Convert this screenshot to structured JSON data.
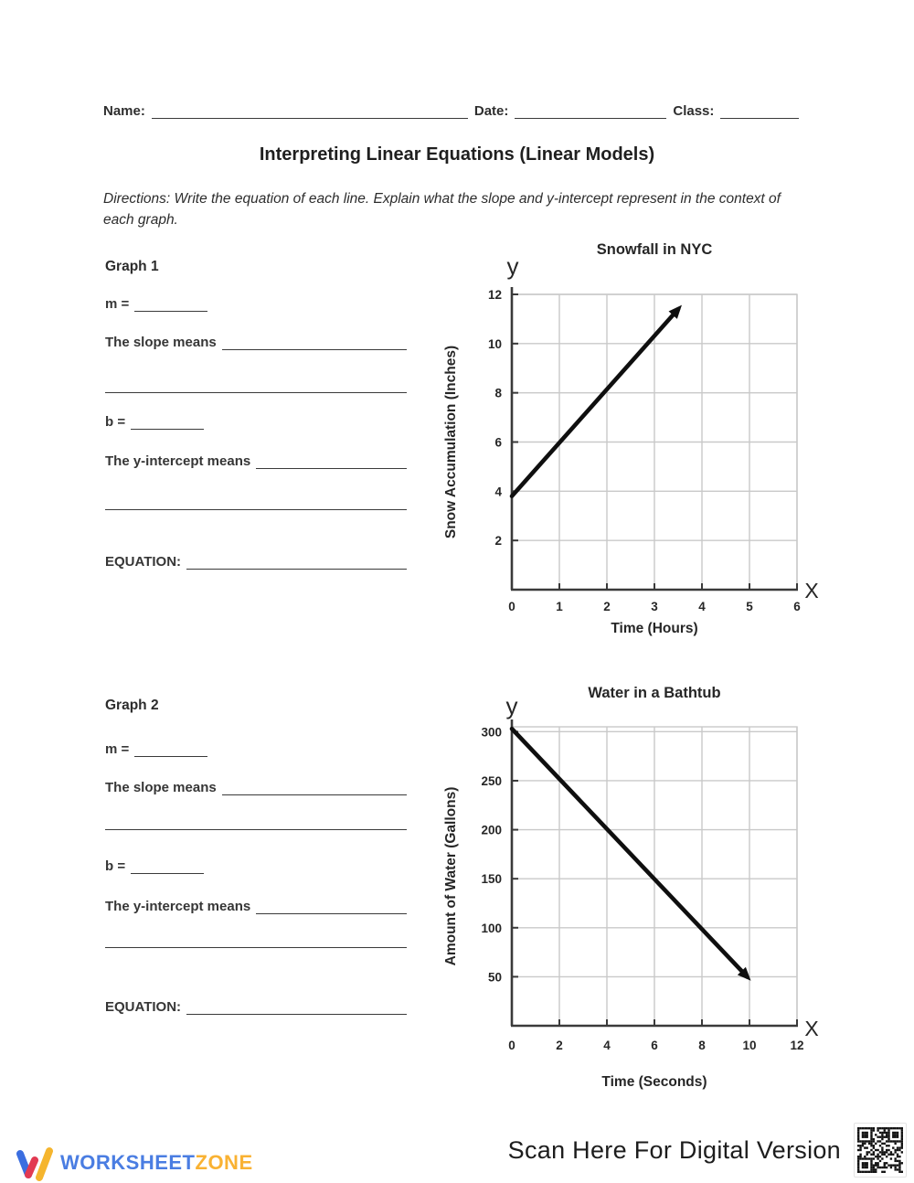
{
  "header": {
    "name_label": "Name:",
    "date_label": "Date:",
    "class_label": "Class:"
  },
  "title": "Interpreting Linear Equations (Linear Models)",
  "directions_line1": "Directions: Write the equation of each line.  Explain what the slope and y-intercept represent in the context of",
  "directions_line2": "each graph.",
  "sections": [
    {
      "heading": "Graph 1",
      "m_label": "m =",
      "slope_label": "The slope means",
      "b_label": "b =",
      "yint_label": "The y-intercept means",
      "equation_label": "EQUATION:"
    },
    {
      "heading": "Graph 2",
      "m_label": "m =",
      "slope_label": "The slope means",
      "b_label": "b =",
      "yint_label": "The y-intercept means",
      "equation_label": "EQUATION:"
    }
  ],
  "chart_data": [
    {
      "type": "line",
      "title": "Snowfall in NYC",
      "xlabel": "Time (Hours)",
      "ylabel": "Snow Accumulation (Inches)",
      "x_axis_letter": "X",
      "y_axis_letter": "y",
      "xlim": [
        0,
        6
      ],
      "ylim": [
        0,
        12
      ],
      "xticks": [
        0,
        1,
        2,
        3,
        4,
        5,
        6
      ],
      "yticks": [
        2,
        4,
        6,
        8,
        10,
        12
      ],
      "grid": true,
      "legend": "none",
      "series": [
        {
          "name": "snow-accumulation-line",
          "points": [
            [
              0,
              3.8
            ],
            [
              3.5,
              11.4
            ]
          ],
          "arrow_end": true
        }
      ]
    },
    {
      "type": "line",
      "title": "Water in a Bathtub",
      "xlabel": "Time (Seconds)",
      "ylabel": "Amount of Water (Gallons)",
      "x_axis_letter": "X",
      "y_axis_letter": "y",
      "xlim": [
        0,
        12
      ],
      "ylim": [
        0,
        305
      ],
      "xticks": [
        0,
        2,
        4,
        6,
        8,
        10,
        12
      ],
      "yticks": [
        50,
        100,
        150,
        200,
        250,
        300
      ],
      "grid": true,
      "legend": "none",
      "series": [
        {
          "name": "water-amount-line",
          "points": [
            [
              0,
              303
            ],
            [
              9.9,
              50
            ]
          ],
          "arrow_end": true
        }
      ]
    }
  ],
  "footer": {
    "logo_worksheet": "WORKSHEET",
    "logo_zone": "ZONE",
    "scan_text": "Scan Here For Digital Version",
    "colors": {
      "logo_blue": "#4a7de2",
      "logo_amber": "#f9b233",
      "logo_red": "#e23a52",
      "axis_dark": "#3a3a3a",
      "grid_gray": "#c9c9c9",
      "line_black": "#0f0f0f"
    }
  }
}
